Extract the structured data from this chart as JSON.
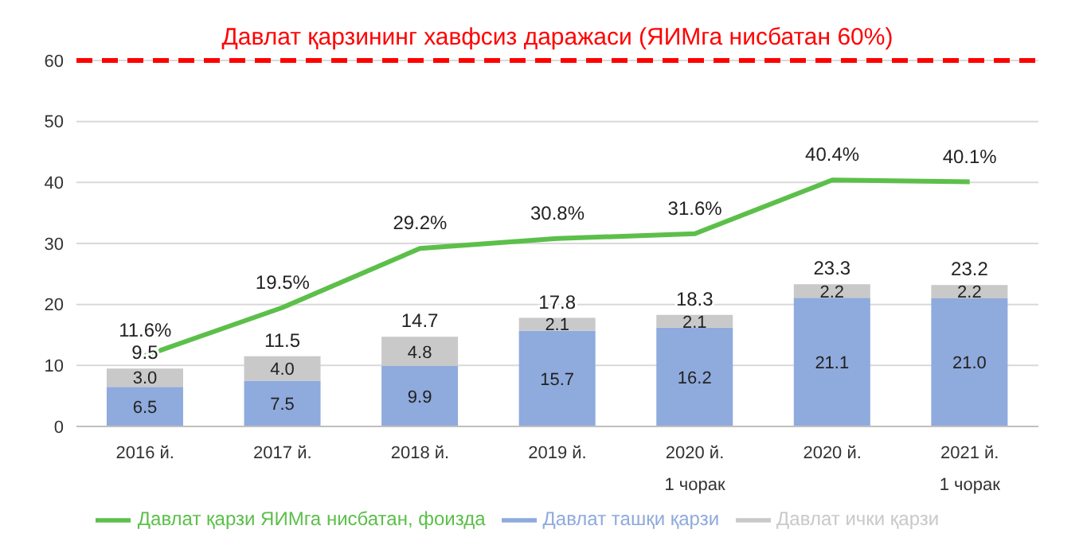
{
  "chart_data": {
    "type": "bar",
    "stacked": true,
    "categories": [
      "2016 й.",
      "2017 й.",
      "2018 й.",
      "2019 й.",
      "2020 й.\n1 чорак",
      "2020 й.",
      "2021 й.\n1 чорак"
    ],
    "series": [
      {
        "name": "Давлат ташқи қарзи",
        "color": "#8faadc",
        "values": [
          6.5,
          7.5,
          9.9,
          15.7,
          16.2,
          21.1,
          21.0
        ],
        "value_labels": [
          "6.5",
          "7.5",
          "9.9",
          "15.7",
          "16.2",
          "21.1",
          "21.0"
        ]
      },
      {
        "name": "Давлат ички қарзи",
        "color": "#c9c9c9",
        "values": [
          3.0,
          4.0,
          4.8,
          2.1,
          2.1,
          2.2,
          2.2
        ],
        "value_labels": [
          "3.0",
          "4.0",
          "4.8",
          "2.1",
          "2.1",
          "2.2",
          "2.2"
        ]
      },
      {
        "name": "Давлат қарзи ЯИМга нисбатан, фоизда",
        "type": "line",
        "color": "#5cbf4a",
        "values": [
          11.6,
          19.5,
          29.2,
          30.8,
          31.6,
          40.4,
          40.1
        ],
        "value_labels": [
          "11.6%",
          "19.5%",
          "29.2%",
          "30.8%",
          "31.6%",
          "40.4%",
          "40.1%"
        ]
      }
    ],
    "totals": [
      "9.5",
      "11.5",
      "14.7",
      "17.8",
      "18.3",
      "23.3",
      "23.2"
    ],
    "ylim": [
      0,
      60
    ],
    "yticks": [
      0,
      10,
      20,
      30,
      40,
      50,
      60
    ],
    "grid": "y",
    "legend": "bottom",
    "marker": "none",
    "line_style": "solid",
    "ref_lines": [
      {
        "axis": "y",
        "value": 60,
        "label": "Давлат қарзининг хавфсиз даражаси (ЯИМга нисбатан 60%)",
        "color": "#ff0000",
        "line_style": "dashed"
      }
    ]
  }
}
